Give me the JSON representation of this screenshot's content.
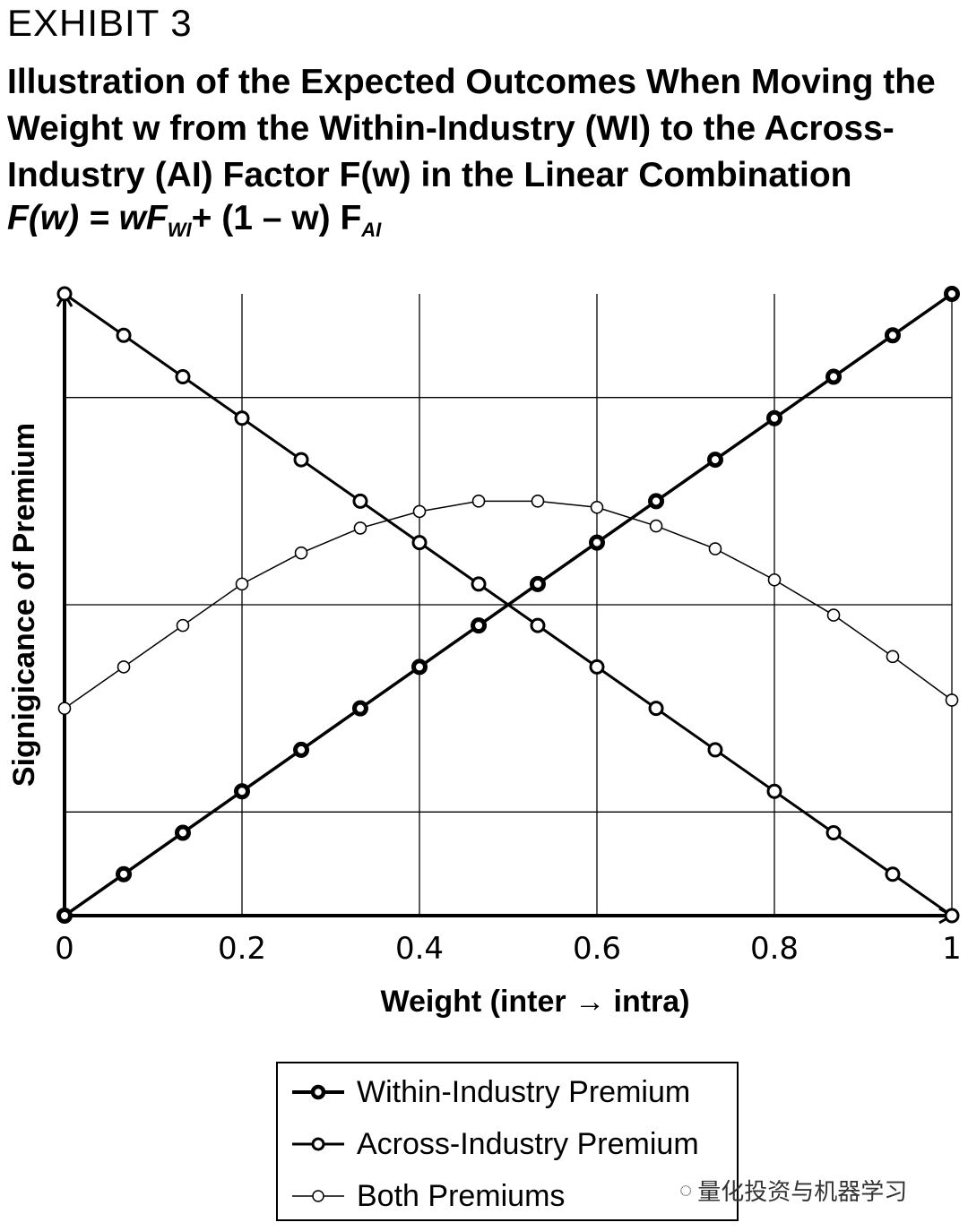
{
  "header": {
    "exhibit": "EXHIBIT 3",
    "title": "Illustration of the Expected Outcomes When Moving the Weight w from the Within-Industry (WI) to the Across-Industry (AI) Factor F(w) in the Linear Combination"
  },
  "formula": {
    "lhs": "F(w) = wF",
    "sub1": "WI",
    "mid": "+ (1 – w) F",
    "sub2": "AI"
  },
  "chart_data": {
    "type": "line",
    "xlabel": "Weight (inter → intra)",
    "ylabel": "Signigicance of Premium",
    "xlim": [
      0,
      1
    ],
    "ylim": [
      0,
      3
    ],
    "x_ticks": [
      "0",
      "0.2",
      "0.4",
      "0.6",
      "0.8",
      "1"
    ],
    "grid": true,
    "legend_position": "bottom-center",
    "x": [
      0,
      0.0667,
      0.1333,
      0.2,
      0.2667,
      0.3333,
      0.4,
      0.4667,
      0.5333,
      0.6,
      0.6667,
      0.7333,
      0.8,
      0.8667,
      0.9333,
      1
    ],
    "series": [
      {
        "name": "Within-Industry Premium",
        "style": "thick",
        "values": [
          0,
          0.2,
          0.4,
          0.6,
          0.8,
          1.0,
          1.2,
          1.4,
          1.6,
          1.8,
          2.0,
          2.2,
          2.4,
          2.6,
          2.8,
          3.0
        ]
      },
      {
        "name": "Across-Industry Premium",
        "style": "medium",
        "values": [
          3.0,
          2.8,
          2.6,
          2.4,
          2.2,
          2.0,
          1.8,
          1.6,
          1.4,
          1.2,
          1.0,
          0.8,
          0.6,
          0.4,
          0.2,
          0
        ]
      },
      {
        "name": "Both Premiums",
        "style": "thin",
        "values": [
          1.0,
          1.2,
          1.4,
          1.6,
          1.75,
          1.87,
          1.95,
          2.0,
          2.0,
          1.97,
          1.88,
          1.77,
          1.62,
          1.45,
          1.25,
          1.04
        ]
      }
    ]
  },
  "watermark": "量化投资与机器学习"
}
